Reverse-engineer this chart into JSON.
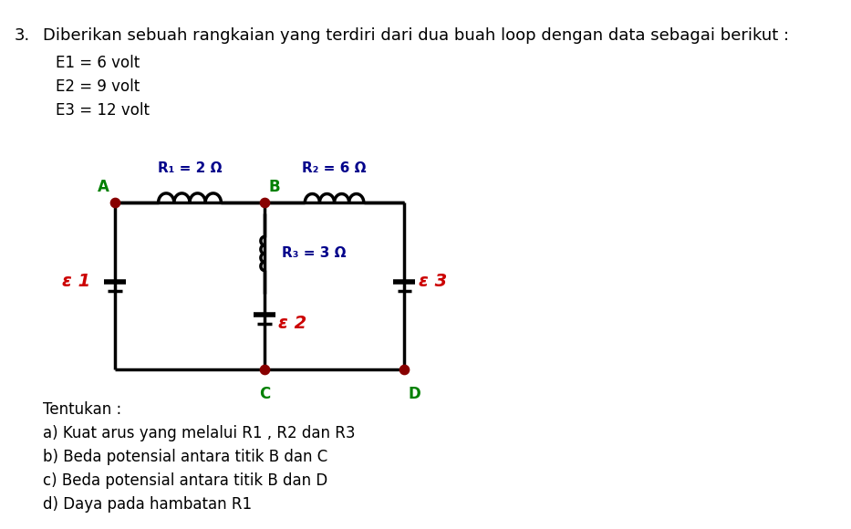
{
  "title_number": "3.",
  "title_text": "Diberikan sebuah rangkaian yang terdiri dari dua buah loop dengan data sebagai berikut :",
  "data_lines": [
    "E1 = 6 volt",
    "E2 = 9 volt",
    "E3 = 12 volt"
  ],
  "question_header": "Tentukan :",
  "questions": [
    "a) Kuat arus yang melalui R1 , R2 dan R3",
    "b) Beda potensial antara titik B dan C",
    "c) Beda potensial antara titik B dan D",
    "d) Daya pada hambatan R1"
  ],
  "circuit": {
    "R1_label": "R₁ = 2 Ω",
    "R2_label": "R₂ = 6 Ω",
    "R3_label": "R₃ = 3 Ω",
    "E1_label": "ε 1",
    "E2_label": "ε 2",
    "E3_label": "ε 3",
    "wire_color": "#000000",
    "node_color": "#880000",
    "R_label_color": "#00008B",
    "node_label_color": "#008000",
    "eps_label_color": "#cc0000",
    "text_color": "#000000"
  },
  "bg_color": "#ffffff",
  "font_size_title": 13,
  "font_size_text": 12,
  "font_size_circuit_label": 11,
  "font_size_node": 12
}
